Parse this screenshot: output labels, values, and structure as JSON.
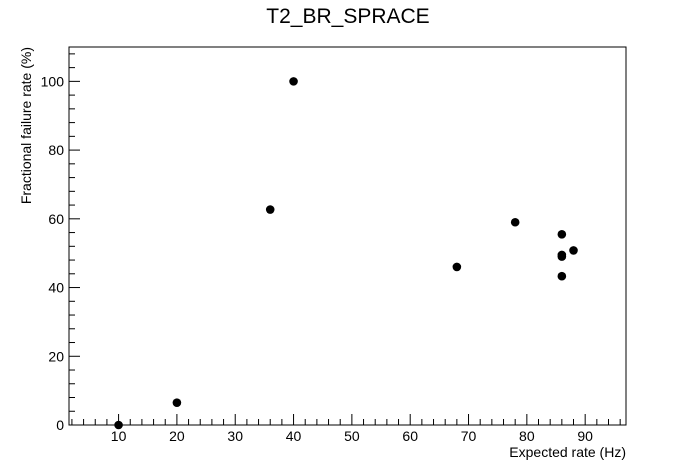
{
  "chart_data": {
    "type": "scatter",
    "title": "T2_BR_SPRACE",
    "xlabel": "Expected rate (Hz)",
    "ylabel": "Fractional failure rate (%)",
    "xlim": [
      1.5,
      97
    ],
    "ylim": [
      0,
      110
    ],
    "x_major_ticks": [
      10,
      20,
      30,
      40,
      50,
      60,
      70,
      80,
      90
    ],
    "y_major_ticks": [
      0,
      20,
      40,
      60,
      80,
      100
    ],
    "grid": false,
    "legend": "none",
    "marker_color": "#000000",
    "points": [
      {
        "x": 10,
        "y": 0
      },
      {
        "x": 20,
        "y": 6.5
      },
      {
        "x": 36,
        "y": 62.7
      },
      {
        "x": 40,
        "y": 100
      },
      {
        "x": 68,
        "y": 46
      },
      {
        "x": 78,
        "y": 59
      },
      {
        "x": 86,
        "y": 55.5
      },
      {
        "x": 86,
        "y": 49.5
      },
      {
        "x": 86,
        "y": 49
      },
      {
        "x": 86,
        "y": 43.3
      },
      {
        "x": 88,
        "y": 50.8
      }
    ]
  }
}
